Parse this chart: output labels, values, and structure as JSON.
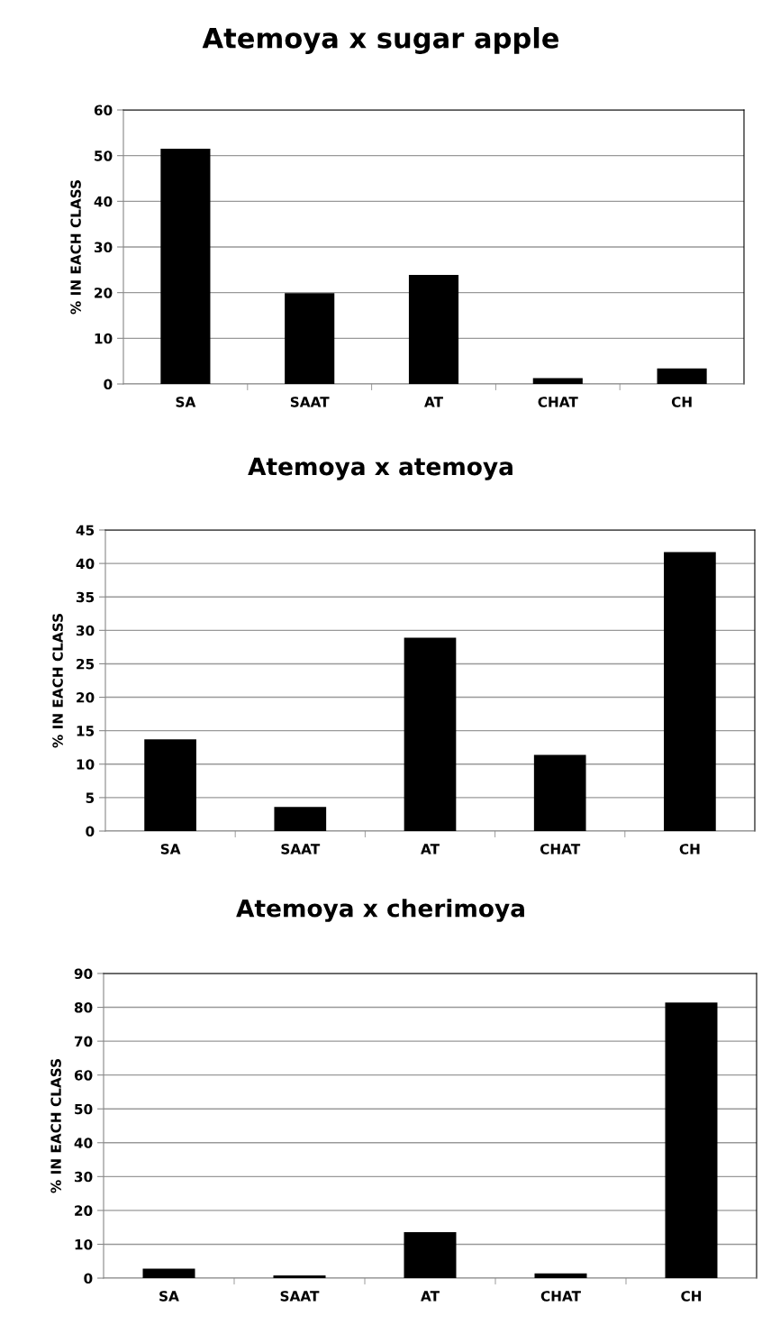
{
  "chart_data": [
    {
      "type": "bar",
      "title": "Atemoya x sugar apple",
      "ylabel": "% IN EACH CLASS",
      "categories": [
        "SA",
        "SAAT",
        "AT",
        "CHAT",
        "CH"
      ],
      "values": [
        51.5,
        19.9,
        23.9,
        1.3,
        3.4
      ],
      "color": "#000000",
      "ylim": [
        0,
        60
      ],
      "yticks": [
        0,
        10,
        20,
        30,
        40,
        50,
        60
      ],
      "grid": "y",
      "legend": false
    },
    {
      "type": "bar",
      "title": "Atemoya x atemoya",
      "ylabel": "% IN EACH CLASS",
      "categories": [
        "SA",
        "SAAT",
        "AT",
        "CHAT",
        "CH"
      ],
      "values": [
        13.7,
        3.6,
        28.9,
        11.4,
        41.7
      ],
      "color": "#000000",
      "ylim": [
        0,
        45
      ],
      "yticks": [
        0,
        5,
        10,
        15,
        20,
        25,
        30,
        35,
        40,
        45
      ],
      "grid": "y",
      "legend": false
    },
    {
      "type": "bar",
      "title": "Atemoya x cherimoya",
      "ylabel": "% IN EACH CLASS",
      "categories": [
        "SA",
        "SAAT",
        "AT",
        "CHAT",
        "CH"
      ],
      "values": [
        2.8,
        0.8,
        13.6,
        1.4,
        81.4
      ],
      "color": "#000000",
      "ylim": [
        0,
        90
      ],
      "yticks": [
        0,
        10,
        20,
        30,
        40,
        50,
        60,
        70,
        80,
        90
      ],
      "grid": "y",
      "legend": false
    }
  ]
}
